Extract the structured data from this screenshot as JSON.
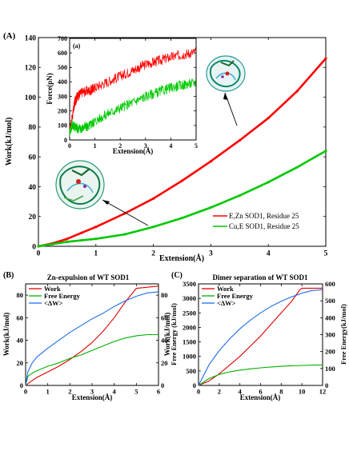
{
  "chart_data": [
    {
      "panel_label": "(A)",
      "type": "line",
      "xlabel": "Extension(Å)",
      "ylabel": "Work(kJ/mol)",
      "xlim": [
        0,
        5
      ],
      "ylim": [
        0,
        140
      ],
      "xticks": [
        "0",
        "1",
        "2",
        "3",
        "4",
        "5"
      ],
      "yticks": [
        "0",
        "20",
        "40",
        "60",
        "80",
        "100",
        "120",
        "140"
      ],
      "legend_position": "bottom-right",
      "series": [
        {
          "name": "E,Zn  SOD1,  Residue  25",
          "color": "#ff0000",
          "x": [
            0,
            0.25,
            0.5,
            0.75,
            1,
            1.5,
            2,
            2.5,
            3,
            3.5,
            4,
            4.5,
            5
          ],
          "y": [
            0,
            2,
            5,
            9,
            13,
            22,
            32,
            44,
            57,
            71,
            86,
            104,
            126
          ]
        },
        {
          "name": "Cu,E  SOD1,  Residue  25",
          "color": "#00c800",
          "x": [
            0,
            0.25,
            0.5,
            0.75,
            1,
            1.5,
            2,
            2.5,
            3,
            3.5,
            4,
            4.5,
            5
          ],
          "y": [
            0,
            1.5,
            3,
            4,
            5,
            8,
            13,
            19,
            26,
            34,
            43,
            53,
            64
          ]
        }
      ],
      "annotations": [
        {
          "type": "protein-structure-image",
          "text": ""
        },
        {
          "type": "protein-structure-image",
          "text": ""
        }
      ]
    },
    {
      "panel_label": "(a)",
      "type": "line",
      "xlabel": "Extension(Å)",
      "ylabel": "Force(pN)",
      "xlim": [
        0,
        5
      ],
      "ylim": [
        0,
        700
      ],
      "xticks": [
        "0",
        "1",
        "2",
        "3",
        "4",
        "5"
      ],
      "yticks": [
        "0",
        "100",
        "200",
        "300",
        "400",
        "500",
        "600",
        "700"
      ],
      "series": [
        {
          "color": "#ff0000",
          "x": [
            0,
            0.1,
            0.2,
            0.3,
            0.5,
            0.8,
            1,
            1.5,
            2,
            2.5,
            3,
            3.5,
            4,
            4.5,
            5
          ],
          "y": [
            60,
            150,
            260,
            300,
            330,
            340,
            360,
            400,
            440,
            480,
            520,
            545,
            570,
            590,
            605
          ]
        },
        {
          "color": "#00c800",
          "x": [
            0,
            0.1,
            0.2,
            0.3,
            0.5,
            0.8,
            1,
            1.5,
            2,
            2.5,
            3,
            3.5,
            4,
            4.5,
            5
          ],
          "y": [
            50,
            110,
            90,
            80,
            80,
            100,
            130,
            180,
            220,
            260,
            300,
            330,
            360,
            380,
            395
          ]
        }
      ]
    },
    {
      "panel_label": "(B)",
      "title": "Zn-expulsion of WT SOD1",
      "type": "line",
      "xlabel": "Extension(Å)",
      "ylabel": "Work(kJ/mol)",
      "ylabel_right": "Free Energy (kJ/mol)",
      "xlim": [
        0,
        6
      ],
      "ylim": [
        0,
        90
      ],
      "ylim_right": [
        0,
        90
      ],
      "xticks": [
        "0",
        "1",
        "2",
        "3",
        "4",
        "5",
        "6"
      ],
      "yticks": [
        "0",
        "20",
        "40",
        "60",
        "80"
      ],
      "yticks_right": [
        "0",
        "20",
        "40",
        "60",
        "80"
      ],
      "legend_position": "top-left",
      "series": [
        {
          "name": "Work",
          "color": "#e00000",
          "x": [
            0,
            0.2,
            0.5,
            1,
            1.5,
            2,
            2.5,
            3,
            3.5,
            4,
            4.5,
            5,
            5.5,
            6
          ],
          "y": [
            0,
            3,
            7,
            12,
            17,
            23,
            30,
            38,
            48,
            60,
            74,
            86,
            87,
            88
          ]
        },
        {
          "name": "Free Energy",
          "color": "#00b000",
          "x": [
            0,
            0.1,
            0.3,
            0.5,
            1,
            1.5,
            2,
            2.5,
            3,
            3.5,
            4,
            4.5,
            5,
            5.5,
            6
          ],
          "y": [
            0,
            8,
            11,
            13,
            17,
            20,
            24,
            27,
            31,
            35,
            39,
            42,
            44,
            45,
            45
          ]
        },
        {
          "name": "<ΔW>",
          "color": "#1e6ee6",
          "x": [
            0,
            0.1,
            0.3,
            0.5,
            1,
            1.5,
            2,
            2.5,
            3,
            3.5,
            4,
            4.5,
            5,
            5.5,
            6
          ],
          "y": [
            0,
            12,
            20,
            25,
            33,
            40,
            47,
            53,
            59,
            64,
            70,
            75,
            79,
            82,
            83
          ]
        }
      ]
    },
    {
      "panel_label": "(C)",
      "title": "Dimer separation of WT SOD1",
      "type": "line",
      "xlabel": "Extension(Å)",
      "ylabel": "Work(kJ/mol)",
      "ylabel_right": "Free Energy(kJ/mol)",
      "xlim": [
        0,
        12
      ],
      "ylim": [
        0,
        3500
      ],
      "ylim_right": [
        0,
        600
      ],
      "xticks": [
        "0",
        "2",
        "4",
        "6",
        "8",
        "10",
        "12"
      ],
      "yticks": [
        "0",
        "500",
        "1000",
        "1500",
        "2000",
        "2500",
        "3000",
        "3500"
      ],
      "yticks_right": [
        "0",
        "100",
        "200",
        "300",
        "400",
        "500",
        "600"
      ],
      "legend_position": "top-left",
      "series": [
        {
          "name": "Work",
          "color": "#e00000",
          "x": [
            0,
            1,
            2,
            3,
            4,
            5,
            6,
            7,
            8,
            9,
            9.8,
            10,
            11,
            12
          ],
          "y": [
            0,
            150,
            400,
            700,
            1000,
            1350,
            1700,
            2100,
            2500,
            2900,
            3300,
            3350,
            3350,
            3350
          ]
        },
        {
          "name": "Free Energy",
          "color": "#00b000",
          "x": [
            0,
            1,
            2,
            3,
            4,
            5,
            6,
            7,
            8,
            9,
            10,
            11,
            12
          ],
          "y": [
            0,
            40,
            65,
            80,
            90,
            98,
            104,
            109,
            113,
            116,
            118,
            120,
            121
          ],
          "axis": "right"
        },
        {
          "name": "<ΔW>",
          "color": "#1e6ee6",
          "x": [
            0,
            0.5,
            1,
            2,
            3,
            4,
            5,
            6,
            7,
            8,
            9,
            10,
            11,
            12
          ],
          "y": [
            0,
            350,
            700,
            1200,
            1600,
            1950,
            2250,
            2500,
            2720,
            2900,
            3050,
            3180,
            3270,
            3300
          ]
        }
      ]
    }
  ]
}
